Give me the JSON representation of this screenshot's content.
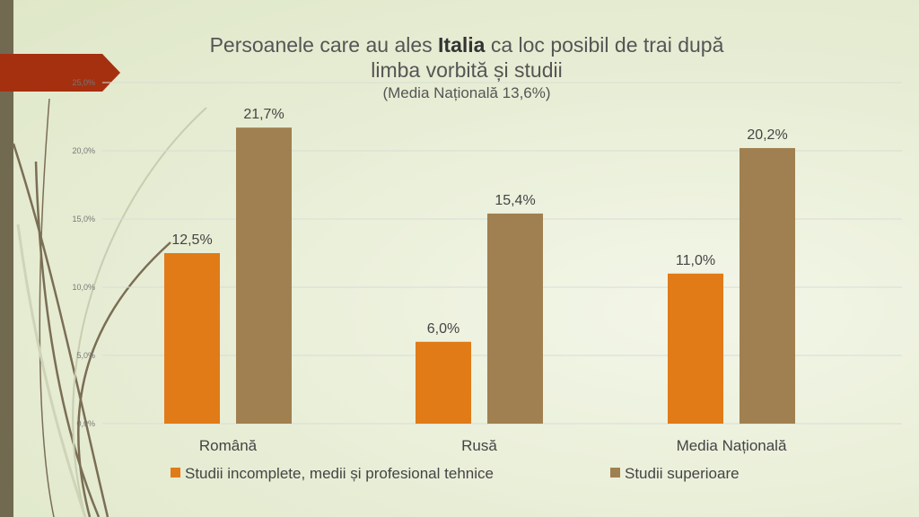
{
  "chart_data": {
    "type": "bar",
    "title": {
      "pre": "Persoanele care au ales ",
      "bold": "Italia",
      "post": " ca loc posibil de trai după",
      "line2": "limba vorbită și studii",
      "subtitle": "(Media Națională 13,6%)"
    },
    "categories": [
      "Română",
      "Rusă",
      "Media Națională"
    ],
    "series": [
      {
        "name": "Studii incomplete, medii și profesional tehnice",
        "values": [
          12.5,
          6.0,
          11.0
        ],
        "labels": [
          "12,5%",
          "6,0%",
          "11,0%"
        ],
        "color": "#e07b18"
      },
      {
        "name": "Studii superioare",
        "values": [
          21.7,
          15.4,
          20.2
        ],
        "labels": [
          "21,7%",
          "15,4%",
          "20,2%"
        ],
        "color": "#a08050"
      }
    ],
    "ylim": [
      0,
      25
    ],
    "yticks": [
      0,
      5,
      10,
      15,
      20,
      25
    ],
    "ytick_labels": [
      "0,0%",
      "5,0%",
      "10,0%",
      "15,0%",
      "20,0%",
      "25,0%"
    ],
    "grid": true,
    "legend": "bottom",
    "xlabel": "",
    "ylabel": ""
  }
}
